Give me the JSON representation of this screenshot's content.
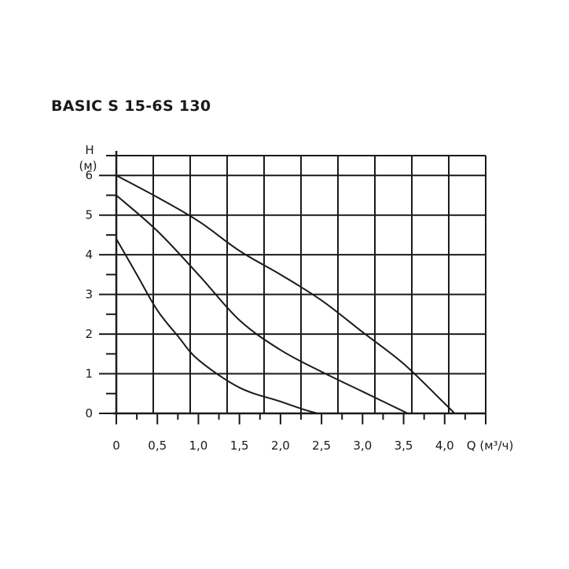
{
  "chart_data": {
    "type": "line",
    "title": "BASIC S 15-6S 130",
    "xlabel": "Q (м³/ч)",
    "ylabel_top": "H",
    "ylabel_unit": "(м)",
    "xlim": [
      0,
      4.5
    ],
    "ylim": [
      0,
      6.5
    ],
    "x_ticks": [
      0,
      0.5,
      1.0,
      1.5,
      2.0,
      2.5,
      3.0,
      3.5,
      4.0
    ],
    "x_tick_labels": [
      "0",
      "0,5",
      "1,0",
      "1,5",
      "2,0",
      "2,5",
      "3,0",
      "3,5",
      "4,0"
    ],
    "y_ticks": [
      0,
      1,
      2,
      3,
      4,
      5,
      6
    ],
    "y_tick_labels": [
      "0",
      "1",
      "2",
      "3",
      "4",
      "5",
      "6"
    ],
    "grid": true,
    "series": [
      {
        "x": [
          0,
          0.5,
          1.0,
          1.5,
          2.0,
          2.5,
          3.0,
          3.5,
          4.0,
          4.12
        ],
        "y": [
          6.0,
          5.45,
          4.85,
          4.1,
          3.5,
          2.85,
          2.05,
          1.25,
          0.25,
          0.0
        ]
      },
      {
        "x": [
          0,
          0.5,
          1.0,
          1.5,
          2.0,
          2.5,
          3.0,
          3.3,
          3.55
        ],
        "y": [
          5.5,
          4.6,
          3.5,
          2.35,
          1.6,
          1.05,
          0.55,
          0.25,
          0.0
        ]
      },
      {
        "x": [
          0,
          0.25,
          0.5,
          0.75,
          1.0,
          1.5,
          2.0,
          2.25,
          2.45
        ],
        "y": [
          4.4,
          3.5,
          2.6,
          1.95,
          1.35,
          0.65,
          0.3,
          0.12,
          0.0
        ]
      }
    ]
  }
}
